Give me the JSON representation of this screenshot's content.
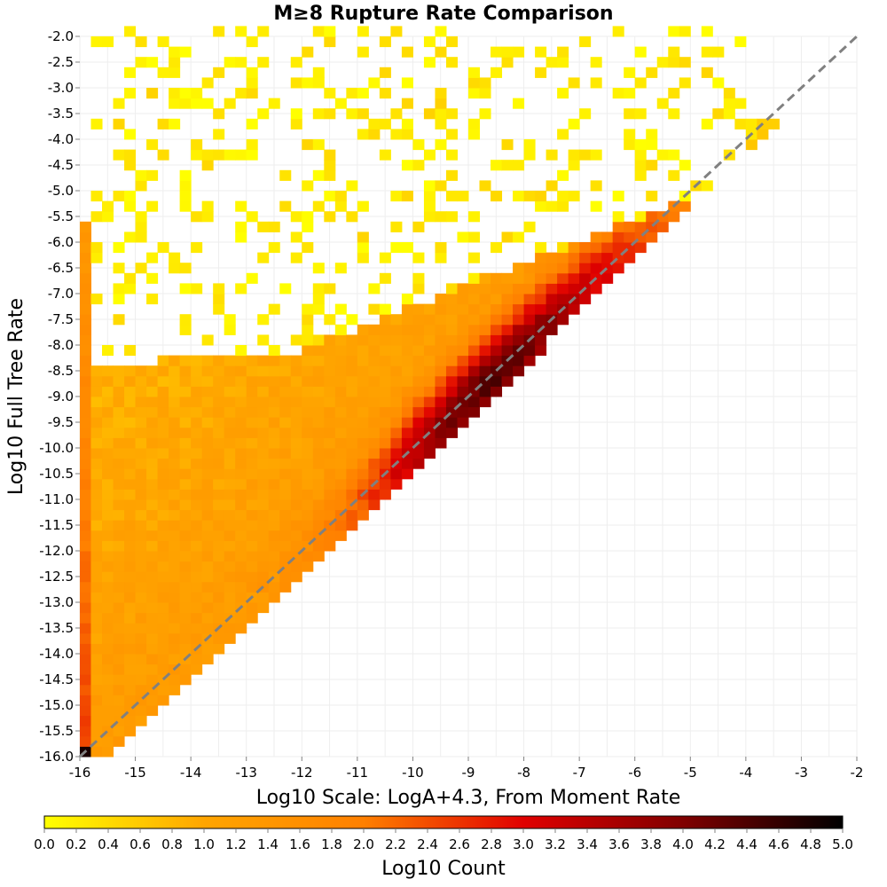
{
  "chart_data": {
    "type": "heatmap",
    "title": "M≥8 Rupture Rate Comparison",
    "xlabel": "Log10 Scale: LogA+4.3, From Moment Rate",
    "ylabel": "Log10 Full Tree Rate",
    "xlim": [
      -16,
      -2
    ],
    "ylim": [
      -16,
      -2
    ],
    "x_ticks": [
      "-16",
      "-15",
      "-14",
      "-13",
      "-12",
      "-11",
      "-10",
      "-9",
      "-8",
      "-7",
      "-6",
      "-5",
      "-4",
      "-3",
      "-2"
    ],
    "y_ticks": [
      "-2.0",
      "-2.5",
      "-3.0",
      "-3.5",
      "-4.0",
      "-4.5",
      "-5.0",
      "-5.5",
      "-6.0",
      "-6.5",
      "-7.0",
      "-7.5",
      "-8.0",
      "-8.5",
      "-9.0",
      "-9.5",
      "-10.0",
      "-10.5",
      "-11.0",
      "-11.5",
      "-12.0",
      "-12.5",
      "-13.0",
      "-13.5",
      "-14.0",
      "-14.5",
      "-15.0",
      "-15.5",
      "-16.0"
    ],
    "bin_width": 0.2,
    "grid": true,
    "reference_line": {
      "style": "dashed",
      "color": "#808080",
      "from": [
        -16,
        -16
      ],
      "to": [
        -2,
        -2
      ]
    },
    "colorbar": {
      "label": "Log10 Count",
      "min": 0.0,
      "max": 5.0,
      "ticks": [
        "0.0",
        "0.2",
        "0.4",
        "0.6",
        "0.8",
        "1.0",
        "1.2",
        "1.4",
        "1.6",
        "1.8",
        "2.0",
        "2.2",
        "2.4",
        "2.6",
        "2.8",
        "3.0",
        "3.2",
        "3.4",
        "3.6",
        "3.8",
        "4.0",
        "4.2",
        "4.4",
        "4.6",
        "4.8",
        "5.0"
      ],
      "colors": [
        "#ffff00",
        "#ffa500",
        "#ff8000",
        "#e00000",
        "#800000",
        "#000000"
      ]
    },
    "density_bands": [
      {
        "name": "diagonal-ridge",
        "x_range": [
          -11,
          -4
        ],
        "peak_log10_count": 3.6
      },
      {
        "name": "left-edge-column",
        "x": -16,
        "y_range": [
          -16,
          -5.8
        ],
        "log10_count_range": [
          1.2,
          2.6
        ]
      },
      {
        "name": "corner-bin",
        "x": -16,
        "y": -16,
        "log10_count": 4.8
      },
      {
        "name": "broad-region",
        "x_range": [
          -16,
          -10
        ],
        "log10_count_range": [
          0.4,
          1.6
        ]
      }
    ]
  }
}
